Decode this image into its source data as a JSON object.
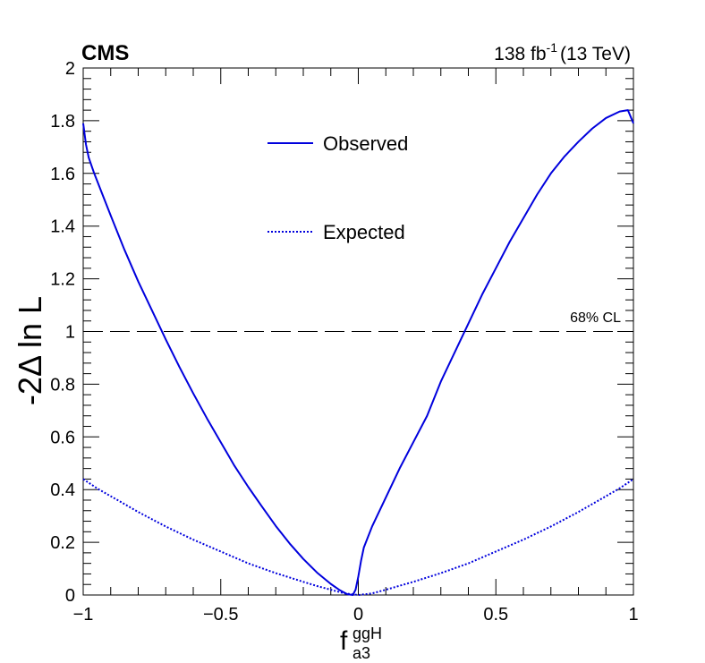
{
  "chart_data": {
    "type": "line",
    "experiment_label": "CMS",
    "lumi_label": {
      "lumi_value": "138 fb",
      "lumi_exponent": "-1",
      "energy": "(13 TeV)"
    },
    "ylabel": "-2Δ ln L",
    "xlabel": {
      "base": "f",
      "superscript": "ggH",
      "subscript": "a3"
    },
    "xlim": [
      -1,
      1
    ],
    "ylim": [
      0,
      2
    ],
    "x_ticks": [
      {
        "value": -1,
        "label": "−1"
      },
      {
        "value": -0.5,
        "label": "−0.5"
      },
      {
        "value": 0,
        "label": "0"
      },
      {
        "value": 0.5,
        "label": "0.5"
      },
      {
        "value": 1,
        "label": "1"
      }
    ],
    "y_ticks": [
      {
        "value": 0,
        "label": "0"
      },
      {
        "value": 0.2,
        "label": "0.2"
      },
      {
        "value": 0.4,
        "label": "0.4"
      },
      {
        "value": 0.6,
        "label": "0.6"
      },
      {
        "value": 0.8,
        "label": "0.8"
      },
      {
        "value": 1,
        "label": "1"
      },
      {
        "value": 1.2,
        "label": "1.2"
      },
      {
        "value": 1.4,
        "label": "1.4"
      },
      {
        "value": 1.6,
        "label": "1.6"
      },
      {
        "value": 1.8,
        "label": "1.8"
      },
      {
        "value": 2,
        "label": "2"
      }
    ],
    "cl_line": {
      "value": 1.0,
      "label": "68% CL"
    },
    "legend": {
      "placement": "top-center"
    },
    "series": [
      {
        "name": "Observed",
        "style": "solid",
        "color": "#0000dd",
        "points": [
          [
            -1.0,
            1.79
          ],
          [
            -0.99,
            1.71
          ],
          [
            -0.98,
            1.66
          ],
          [
            -0.96,
            1.6
          ],
          [
            -0.93,
            1.52
          ],
          [
            -0.9,
            1.44
          ],
          [
            -0.85,
            1.31
          ],
          [
            -0.8,
            1.19
          ],
          [
            -0.75,
            1.08
          ],
          [
            -0.7,
            0.97
          ],
          [
            -0.65,
            0.865
          ],
          [
            -0.6,
            0.765
          ],
          [
            -0.55,
            0.67
          ],
          [
            -0.5,
            0.58
          ],
          [
            -0.45,
            0.49
          ],
          [
            -0.4,
            0.41
          ],
          [
            -0.35,
            0.335
          ],
          [
            -0.3,
            0.262
          ],
          [
            -0.25,
            0.196
          ],
          [
            -0.2,
            0.137
          ],
          [
            -0.15,
            0.085
          ],
          [
            -0.1,
            0.042
          ],
          [
            -0.07,
            0.02
          ],
          [
            -0.04,
            0.003
          ],
          [
            -0.02,
            0.0
          ],
          [
            -0.01,
            0.02
          ],
          [
            0.0,
            0.07
          ],
          [
            0.01,
            0.13
          ],
          [
            0.02,
            0.18
          ],
          [
            0.05,
            0.26
          ],
          [
            0.1,
            0.37
          ],
          [
            0.15,
            0.48
          ],
          [
            0.2,
            0.58
          ],
          [
            0.25,
            0.68
          ],
          [
            0.3,
            0.81
          ],
          [
            0.35,
            0.92
          ],
          [
            0.4,
            1.03
          ],
          [
            0.45,
            1.14
          ],
          [
            0.5,
            1.24
          ],
          [
            0.55,
            1.34
          ],
          [
            0.6,
            1.43
          ],
          [
            0.65,
            1.52
          ],
          [
            0.7,
            1.6
          ],
          [
            0.75,
            1.665
          ],
          [
            0.8,
            1.72
          ],
          [
            0.85,
            1.77
          ],
          [
            0.9,
            1.81
          ],
          [
            0.95,
            1.835
          ],
          [
            0.98,
            1.84
          ],
          [
            1.0,
            1.79
          ]
        ]
      },
      {
        "name": "Expected",
        "style": "dotted",
        "color": "#0000dd",
        "points": [
          [
            -1.0,
            0.44
          ],
          [
            -0.95,
            0.405
          ],
          [
            -0.9,
            0.375
          ],
          [
            -0.8,
            0.315
          ],
          [
            -0.7,
            0.26
          ],
          [
            -0.6,
            0.21
          ],
          [
            -0.5,
            0.165
          ],
          [
            -0.4,
            0.12
          ],
          [
            -0.3,
            0.083
          ],
          [
            -0.2,
            0.05
          ],
          [
            -0.15,
            0.034
          ],
          [
            -0.1,
            0.02
          ],
          [
            -0.05,
            0.006
          ],
          [
            0.0,
            0.0
          ],
          [
            0.05,
            0.006
          ],
          [
            0.1,
            0.02
          ],
          [
            0.15,
            0.035
          ],
          [
            0.2,
            0.05
          ],
          [
            0.3,
            0.083
          ],
          [
            0.4,
            0.12
          ],
          [
            0.5,
            0.165
          ],
          [
            0.6,
            0.21
          ],
          [
            0.7,
            0.26
          ],
          [
            0.8,
            0.315
          ],
          [
            0.9,
            0.375
          ],
          [
            0.95,
            0.405
          ],
          [
            1.0,
            0.44
          ]
        ]
      }
    ]
  }
}
